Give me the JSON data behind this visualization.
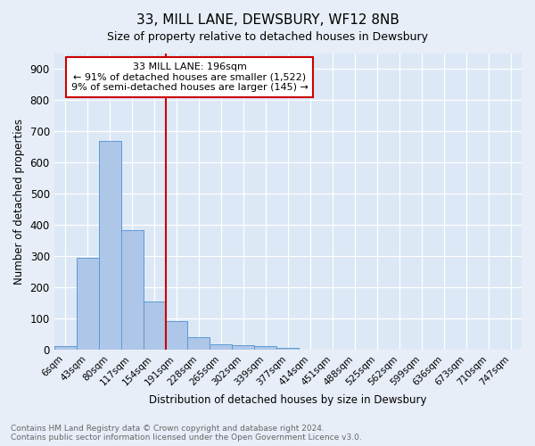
{
  "title": "33, MILL LANE, DEWSBURY, WF12 8NB",
  "subtitle": "Size of property relative to detached houses in Dewsbury",
  "xlabel": "Distribution of detached houses by size in Dewsbury",
  "ylabel": "Number of detached properties",
  "bar_values": [
    10,
    295,
    670,
    383,
    153,
    90,
    40,
    18,
    15,
    12,
    7,
    0,
    0,
    0,
    0,
    0,
    0,
    0,
    0,
    0,
    0
  ],
  "bar_labels": [
    "6sqm",
    "43sqm",
    "80sqm",
    "117sqm",
    "154sqm",
    "191sqm",
    "228sqm",
    "265sqm",
    "302sqm",
    "339sqm",
    "377sqm",
    "414sqm",
    "451sqm",
    "488sqm",
    "525sqm",
    "562sqm",
    "599sqm",
    "636sqm",
    "673sqm",
    "710sqm",
    "747sqm"
  ],
  "bar_color": "#aec6e8",
  "bar_edge_color": "#5b9bd5",
  "bar_width": 1.0,
  "vline_x": 5.0,
  "vline_color": "#cc0000",
  "annotation_text": "33 MILL LANE: 196sqm\n← 91% of detached houses are smaller (1,522)\n9% of semi-detached houses are larger (145) →",
  "annotation_box_color": "#ffffff",
  "annotation_box_edge": "#cc0000",
  "ylim": [
    0,
    950
  ],
  "yticks": [
    0,
    100,
    200,
    300,
    400,
    500,
    600,
    700,
    800,
    900
  ],
  "background_color": "#dce8f5",
  "fig_background_color": "#e8eef8",
  "grid_color": "#ffffff",
  "footer_line1": "Contains HM Land Registry data © Crown copyright and database right 2024.",
  "footer_line2": "Contains public sector information licensed under the Open Government Licence v3.0."
}
